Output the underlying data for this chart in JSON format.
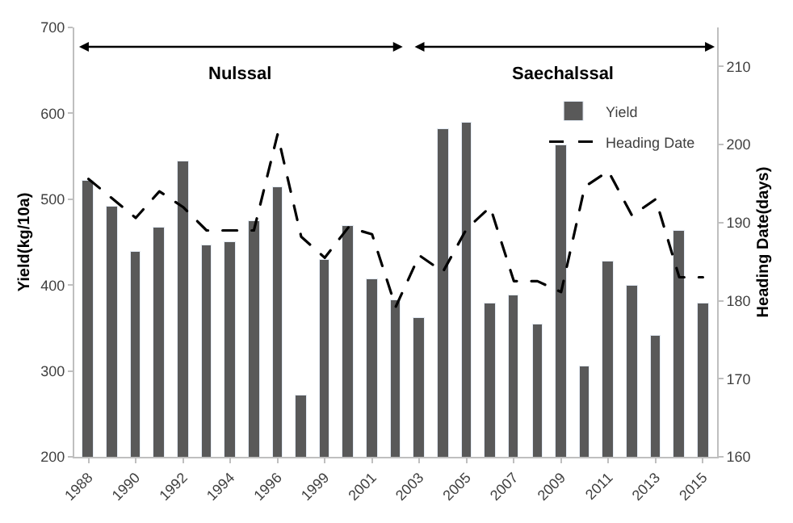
{
  "chart_data": {
    "type": "bar",
    "categories": [
      "1988",
      null,
      "1990",
      null,
      "1992",
      null,
      "1994",
      null,
      "1996",
      null,
      "1999",
      null,
      "2001",
      null,
      "2003",
      null,
      "2005",
      null,
      "2007",
      null,
      "2009",
      null,
      "2011",
      null,
      "2013",
      null,
      "2015"
    ],
    "series": [
      {
        "name": "Yield",
        "color": "#595959",
        "values": [
          521,
          492,
          439,
          466,
          544,
          447,
          450,
          475,
          514,
          272,
          429,
          468,
          407,
          383,
          361,
          581,
          590,
          379,
          388,
          355,
          563,
          306,
          427,
          400,
          341,
          463,
          379
        ]
      },
      {
        "name": "Heading Date",
        "type": "line",
        "axis": "y2",
        "color": "#000000",
        "line_style": "dashed",
        "values": [
          195.6,
          193.1,
          190.6,
          194,
          192,
          189,
          189,
          189,
          201.3,
          188.2,
          185.5,
          189.4,
          188.5,
          179.2,
          185.8,
          183.7,
          189.2,
          192,
          182.5,
          182.5,
          181.1,
          194.6,
          196.6,
          190.9,
          193,
          183,
          183
        ]
      }
    ],
    "ylabel": "Yield(kg/10a)",
    "y2label": "Heading Date(days)",
    "ylim": [
      200,
      700
    ],
    "yticks": [
      200,
      300,
      400,
      500,
      600,
      700
    ],
    "y2lim": [
      160,
      215
    ],
    "y2ticks": [
      160,
      170,
      180,
      190,
      200,
      210
    ],
    "annotations": [
      "Nulssal",
      "Saechalssal"
    ],
    "legend": "top right"
  }
}
